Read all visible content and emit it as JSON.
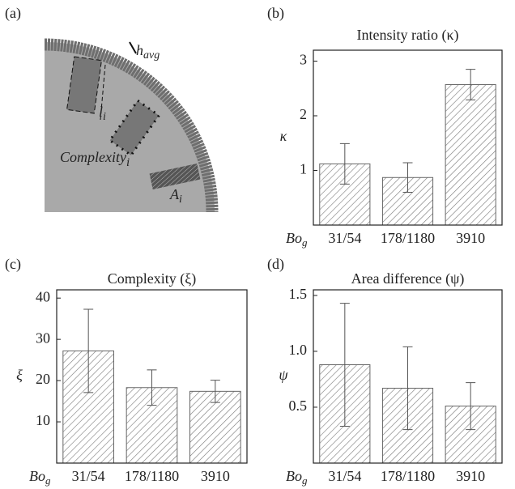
{
  "diagram": {
    "panel": "(a)",
    "labels": [
      {
        "text": "h",
        "sub": "avg"
      },
      {
        "text": "l",
        "sub": "i"
      },
      {
        "text": "Complexity",
        "sub": "i"
      },
      {
        "text": "A",
        "sub": "i"
      }
    ]
  },
  "chart_data": [
    {
      "type": "bar",
      "panel": "(b)",
      "title": "Intensity ratio (κ)",
      "ylabel": "κ",
      "xlabel": "Bo",
      "xlabel_sub": "g",
      "categories": [
        "31/54",
        "178/1180",
        "3910"
      ],
      "values": [
        1.12,
        0.87,
        2.57
      ],
      "errors": [
        0.37,
        0.27,
        0.28
      ],
      "ylim": [
        0,
        3.2
      ],
      "yticks": [
        1,
        2,
        3
      ]
    },
    {
      "type": "bar",
      "panel": "(c)",
      "title": "Complexity (ξ)",
      "ylabel": "ξ",
      "xlabel": "Bo",
      "xlabel_sub": "g",
      "categories": [
        "31/54",
        "178/1180",
        "3910"
      ],
      "values": [
        27.2,
        18.3,
        17.4
      ],
      "errors": [
        10.1,
        4.3,
        2.7
      ],
      "ylim": [
        0,
        42
      ],
      "yticks": [
        10,
        20,
        30,
        40
      ]
    },
    {
      "type": "bar",
      "panel": "(d)",
      "title": "Area difference (ψ)",
      "ylabel": "ψ",
      "xlabel": "Bo",
      "xlabel_sub": "g",
      "categories": [
        "31/54",
        "178/1180",
        "3910"
      ],
      "values": [
        0.88,
        0.67,
        0.51
      ],
      "errors": [
        0.55,
        0.37,
        0.21
      ],
      "ylim": [
        0,
        1.55
      ],
      "yticks": [
        0.5,
        {
          "value": 1,
          "label": "1.0"
        },
        1.5
      ]
    }
  ]
}
